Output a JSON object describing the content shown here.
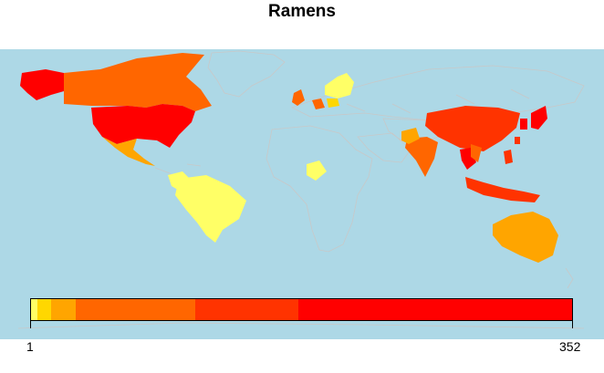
{
  "title": "Ramens",
  "legend": {
    "min_label": "1",
    "max_label": "352",
    "segments": [
      {
        "color": "#ffff66",
        "fraction": 0.012
      },
      {
        "color": "#ffd700",
        "fraction": 0.025
      },
      {
        "color": "#ffa500",
        "fraction": 0.045
      },
      {
        "color": "#ff6600",
        "fraction": 0.222
      },
      {
        "color": "#ff3300",
        "fraction": 0.19
      },
      {
        "color": "#ff0000",
        "fraction": 0.506
      }
    ]
  },
  "colors": {
    "ocean": "#add8e6",
    "land": "#add8e6",
    "border": "#c8c8c8"
  }
}
